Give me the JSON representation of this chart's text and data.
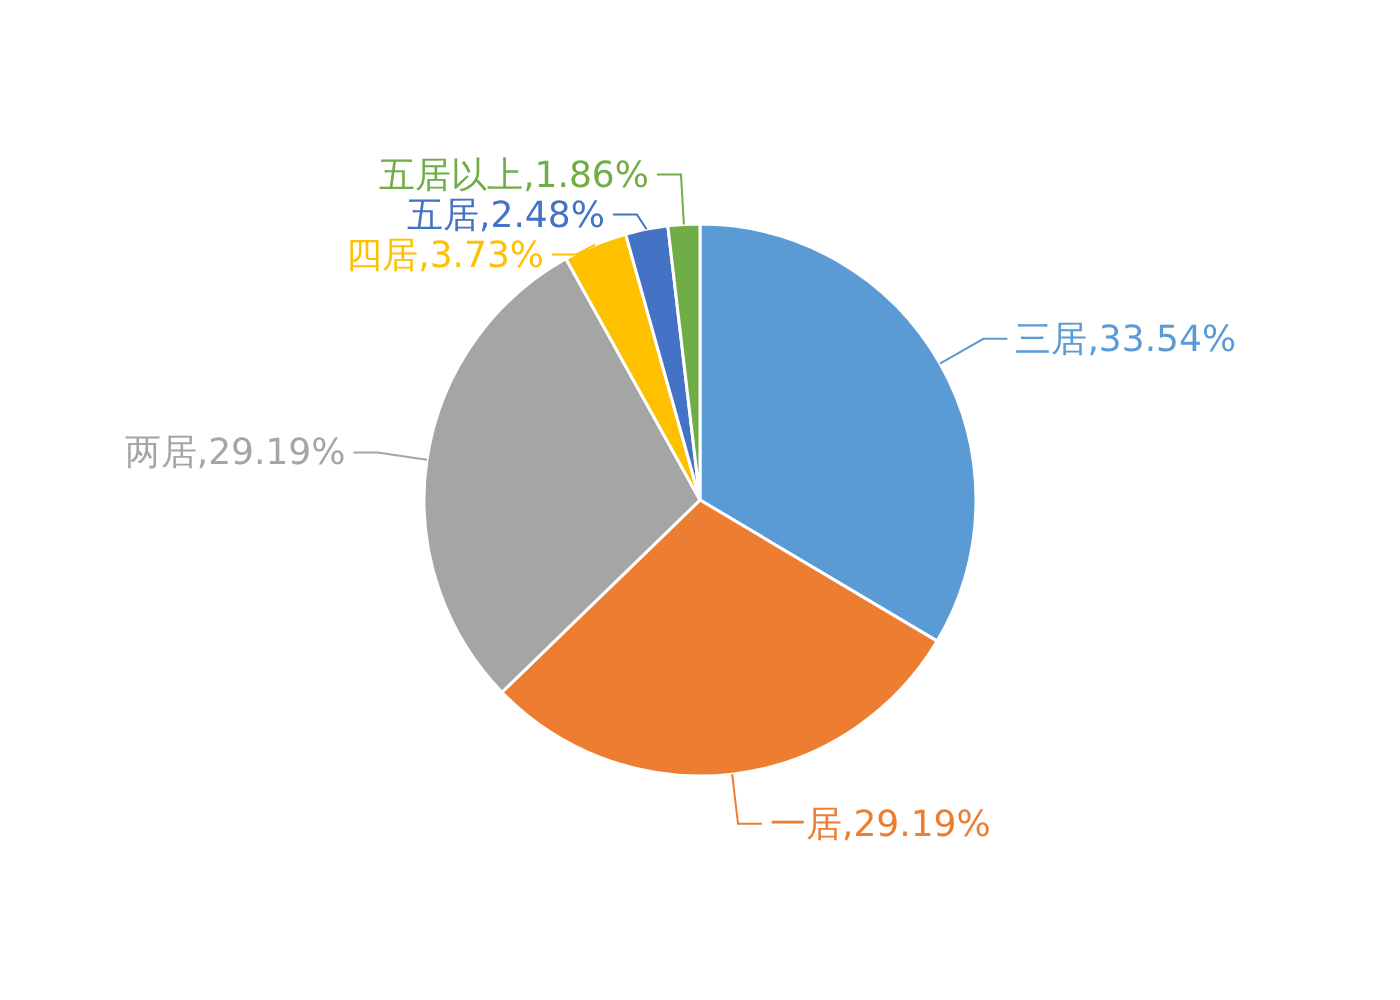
{
  "chart_data": {
    "type": "pie",
    "categories": [
      "三居",
      "一居",
      "两居",
      "四居",
      "五居",
      "五居以上"
    ],
    "values": [
      33.54,
      29.19,
      29.19,
      3.73,
      2.48,
      1.86
    ],
    "colors": [
      "#5b9bd5",
      "#ed7d31",
      "#a5a5a5",
      "#ffc000",
      "#4472c4",
      "#70ad47"
    ],
    "value_labels": [
      ",33.54%",
      ",29.19%",
      ",29.19%",
      ",3.73%",
      ",2.48%",
      ",1.86%"
    ],
    "legend": false
  }
}
